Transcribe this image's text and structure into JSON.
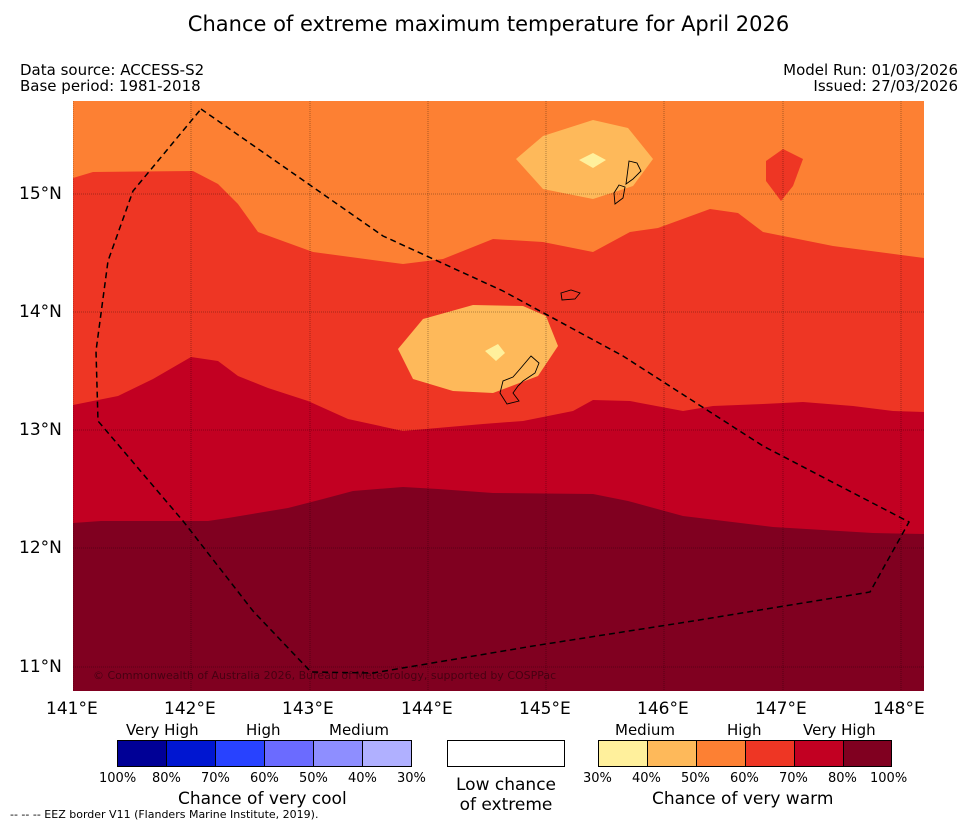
{
  "title": "Chance of extreme maximum temperature for April 2026",
  "meta": {
    "data_source": "Data source: ACCESS-S2",
    "base_period": "Base period: 1981-2018",
    "model_run": "Model Run: 01/03/2026",
    "issued": "Issued: 27/03/2026"
  },
  "map": {
    "copyright": "© Commonwealth of Australia 2026, Bureau of Meteorology, supported by COSPPac",
    "lat_ticks": [
      "15°N",
      "14°N",
      "13°N",
      "12°N",
      "11°N"
    ],
    "lon_ticks": [
      "141°E",
      "142°E",
      "143°E",
      "144°E",
      "145°E",
      "146°E",
      "147°E",
      "148°E"
    ],
    "colors": {
      "c40_50": "#feb95a",
      "c50_60": "#fd8033",
      "c60_70": "#ee3624",
      "c70_80": "#c20022",
      "c80_100": "#800020",
      "c30_40": "#fff09c"
    }
  },
  "legend": {
    "cool": {
      "head_very_high": "Very High",
      "head_high": "High",
      "head_medium": "Medium",
      "pcts": [
        "100%",
        "80%",
        "70%",
        "60%",
        "50%",
        "40%",
        "30%"
      ],
      "title": "Chance of very cool",
      "colors": [
        "#000096",
        "#0016d1",
        "#2842ff",
        "#6b6bff",
        "#8e8eff",
        "#b0b0ff"
      ]
    },
    "neutral": {
      "title_line1": "Low chance",
      "title_line2": "of extreme"
    },
    "warm": {
      "head_medium": "Medium",
      "head_high": "High",
      "head_very_high": "Very High",
      "pcts": [
        "30%",
        "40%",
        "50%",
        "60%",
        "70%",
        "80%",
        "100%"
      ],
      "title": "Chance of very warm",
      "colors": [
        "#fff09c",
        "#feb95a",
        "#fd8033",
        "#ee3624",
        "#c20022",
        "#800020"
      ]
    }
  },
  "footnote": "--  --  -- EEZ border V11 (Flanders Marine Institute, 2019)."
}
